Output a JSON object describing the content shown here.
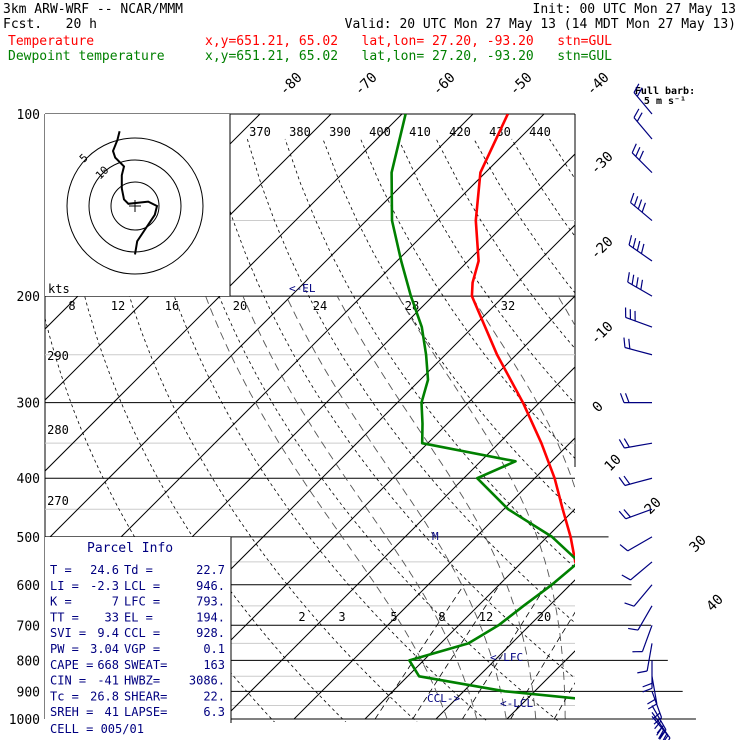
{
  "header": {
    "model": "3km ARW-WRF -- NCAR/MMM",
    "init": "Init: 00 UTC Mon 27 May 13",
    "fcst": "Fcst.   20 h",
    "valid": "Valid: 20 UTC Mon 27 May 13 (14 MDT Mon 27 May 13)",
    "temp_label": "Temperature",
    "dew_label": "Dewpoint temperature",
    "location": "x,y=651.21, 65.02   lat,lon= 27.20, -93.20   stn=GUL",
    "temp_color": "#ff0000",
    "dew_color": "#008000"
  },
  "barb_legend": {
    "title": "Full barb:",
    "units": "5 m s⁻¹"
  },
  "pressure_labels": [
    "100",
    "200",
    "300",
    "400",
    "500",
    "600",
    "700",
    "800",
    "900",
    "1000"
  ],
  "temp_isotherm_labels": [
    "-80",
    "-70",
    "-60",
    "-50",
    "-40",
    "-30",
    "-20",
    "-10",
    "0",
    "10",
    "20",
    "30",
    "40"
  ],
  "theta_labels_top": [
    "370",
    "380",
    "390",
    "400",
    "410",
    "420",
    "430",
    "440"
  ],
  "theta_labels_left": [
    "290",
    "280",
    "270"
  ],
  "mixing_ratio_labels": [
    "2",
    "3",
    "5",
    "8",
    "12",
    "20"
  ],
  "hodograph": {
    "units": "kts",
    "ring_labels": [
      "5",
      "10"
    ],
    "speed_labels": [
      "8",
      "12",
      "16",
      "20",
      "24",
      "28",
      "32"
    ]
  },
  "annotations": {
    "el": "<-EL",
    "lfc": "<-LFC",
    "lcl": "<-LCL",
    "ccl": "CCL->",
    "m_marker": "M"
  },
  "parcel_info": {
    "title": "Parcel Info",
    "rows": [
      [
        "T  =",
        "24.6",
        "Td =",
        "22.7"
      ],
      [
        "LI =",
        "-2.3",
        "LCL =",
        "946."
      ],
      [
        "K  =",
        "7",
        "LFC =",
        "793."
      ],
      [
        "TT =",
        "33",
        "EL  =",
        "194."
      ],
      [
        "SVI =",
        "9.4",
        "CCL =",
        "928."
      ],
      [
        "PW =",
        "3.04",
        "VGP =",
        "0.1"
      ],
      [
        "CAPE =",
        "668",
        "SWEAT=",
        "163"
      ],
      [
        "CIN =",
        "-41",
        "HWBZ=",
        "3086."
      ],
      [
        "Tc =",
        "26.8",
        "SHEAR=",
        "22."
      ],
      [
        "SREH =",
        "41",
        "LAPSE=",
        "6.3"
      ]
    ],
    "cell": "CELL = 005/01"
  },
  "chart_data": {
    "type": "line",
    "title": "",
    "xlabel": "",
    "ylabel": "",
    "y_scale": "log-pressure",
    "ylim": [
      1000,
      100
    ],
    "series": [
      {
        "name": "Temperature",
        "color": "#ff0000",
        "points": [
          {
            "p": 1000,
            "t": 24.6
          },
          {
            "p": 975,
            "t": 22.8
          },
          {
            "p": 950,
            "t": 21.0
          },
          {
            "p": 925,
            "t": 20.5
          },
          {
            "p": 900,
            "t": 19.7
          },
          {
            "p": 850,
            "t": 17.6
          },
          {
            "p": 800,
            "t": 15.1
          },
          {
            "p": 750,
            "t": 12.4
          },
          {
            "p": 700,
            "t": 9.4
          },
          {
            "p": 650,
            "t": 6.1
          },
          {
            "p": 600,
            "t": 2.0
          },
          {
            "p": 550,
            "t": -2.5
          },
          {
            "p": 500,
            "t": -6.7
          },
          {
            "p": 450,
            "t": -11.7
          },
          {
            "p": 400,
            "t": -17.2
          },
          {
            "p": 350,
            "t": -24.0
          },
          {
            "p": 300,
            "t": -32.3
          },
          {
            "p": 250,
            "t": -42.7
          },
          {
            "p": 200,
            "t": -54.5
          },
          {
            "p": 190,
            "t": -56.3
          },
          {
            "p": 175,
            "t": -58.5
          },
          {
            "p": 150,
            "t": -64.6
          },
          {
            "p": 125,
            "t": -70.7
          },
          {
            "p": 100,
            "t": -75.1
          }
        ]
      },
      {
        "name": "Dewpoint temperature",
        "color": "#008000",
        "points": [
          {
            "p": 1000,
            "t": 22.7
          },
          {
            "p": 975,
            "t": 21.5
          },
          {
            "p": 950,
            "t": 19.8
          },
          {
            "p": 925,
            "t": 17.0
          },
          {
            "p": 900,
            "t": 5.8
          },
          {
            "p": 850,
            "t": -8.4
          },
          {
            "p": 800,
            "t": -12.0
          },
          {
            "p": 750,
            "t": -6.1
          },
          {
            "p": 700,
            "t": -4.4
          },
          {
            "p": 650,
            "t": -3.6
          },
          {
            "p": 600,
            "t": -2.6
          },
          {
            "p": 550,
            "t": -2.0
          },
          {
            "p": 500,
            "t": -9.3
          },
          {
            "p": 450,
            "t": -19.4
          },
          {
            "p": 400,
            "t": -28.1
          },
          {
            "p": 375,
            "t": -25.1
          },
          {
            "p": 350,
            "t": -40.8
          },
          {
            "p": 325,
            "t": -43.5
          },
          {
            "p": 300,
            "t": -46.6
          },
          {
            "p": 275,
            "t": -48.9
          },
          {
            "p": 250,
            "t": -52.7
          },
          {
            "p": 225,
            "t": -57.2
          },
          {
            "p": 200,
            "t": -63.1
          },
          {
            "p": 175,
            "t": -69.4
          },
          {
            "p": 150,
            "t": -76.4
          },
          {
            "p": 125,
            "t": -83.2
          },
          {
            "p": 100,
            "t": -89.5
          }
        ]
      }
    ],
    "wind_barbs": [
      {
        "p": 990,
        "spd": 18,
        "dir": 140
      },
      {
        "p": 975,
        "spd": 18,
        "dir": 145
      },
      {
        "p": 950,
        "spd": 16,
        "dir": 150
      },
      {
        "p": 900,
        "spd": 14,
        "dir": 160
      },
      {
        "p": 850,
        "spd": 12,
        "dir": 170
      },
      {
        "p": 800,
        "spd": 10,
        "dir": 180
      },
      {
        "p": 750,
        "spd": 8,
        "dir": 190
      },
      {
        "p": 700,
        "spd": 7,
        "dir": 200
      },
      {
        "p": 650,
        "spd": 6,
        "dir": 210
      },
      {
        "p": 600,
        "spd": 6,
        "dir": 220
      },
      {
        "p": 550,
        "spd": 7,
        "dir": 230
      },
      {
        "p": 500,
        "spd": 8,
        "dir": 240
      },
      {
        "p": 450,
        "spd": 10,
        "dir": 250
      },
      {
        "p": 400,
        "spd": 12,
        "dir": 255
      },
      {
        "p": 350,
        "spd": 12,
        "dir": 260
      },
      {
        "p": 300,
        "spd": 10,
        "dir": 270
      },
      {
        "p": 250,
        "spd": 14,
        "dir": 285
      },
      {
        "p": 225,
        "spd": 18,
        "dir": 290
      },
      {
        "p": 200,
        "spd": 20,
        "dir": 300
      },
      {
        "p": 175,
        "spd": 22,
        "dir": 305
      },
      {
        "p": 150,
        "spd": 20,
        "dir": 310
      },
      {
        "p": 125,
        "spd": 16,
        "dir": 315
      },
      {
        "p": 110,
        "spd": 14,
        "dir": 320
      },
      {
        "p": 100,
        "spd": 12,
        "dir": 320
      }
    ],
    "hodograph_kts": [
      {
        "u": 0,
        "v": -22
      },
      {
        "u": 1,
        "v": -16
      },
      {
        "u": 5,
        "v": -10
      },
      {
        "u": 9,
        "v": -4
      },
      {
        "u": 10,
        "v": 0
      },
      {
        "u": 6,
        "v": 2
      },
      {
        "u": -3,
        "v": 1
      },
      {
        "u": -5,
        "v": 3
      },
      {
        "u": -6,
        "v": 8
      },
      {
        "u": -6,
        "v": 14
      },
      {
        "u": -5,
        "v": 18
      },
      {
        "u": -9,
        "v": 22
      },
      {
        "u": -10,
        "v": 25
      },
      {
        "u": -8,
        "v": 30
      },
      {
        "u": -7,
        "v": 34
      }
    ]
  }
}
